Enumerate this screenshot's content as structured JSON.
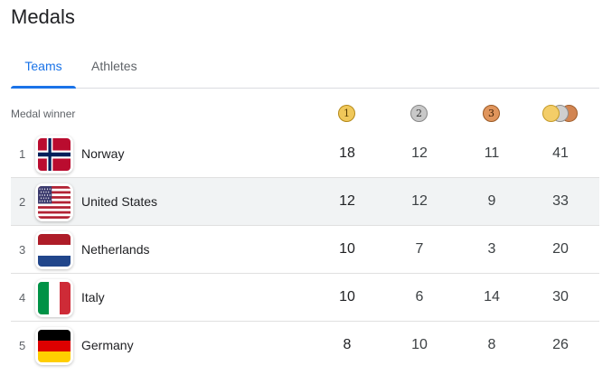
{
  "title": "Medals",
  "tabs": [
    {
      "label": "Teams",
      "active": true
    },
    {
      "label": "Athletes",
      "active": false
    }
  ],
  "header": {
    "label": "Medal winner",
    "gold": "1",
    "silver": "2",
    "bronze": "3"
  },
  "colors": {
    "accent": "#1a73e8",
    "gold": "#f0c85a",
    "silver": "#c8c8c8",
    "bronze": "#e0955c"
  },
  "rows": [
    {
      "rank": "1",
      "country": "Norway",
      "gold": "18",
      "silver": "12",
      "bronze": "11",
      "total": "41",
      "flag": "norway-flag"
    },
    {
      "rank": "2",
      "country": "United States",
      "gold": "12",
      "silver": "12",
      "bronze": "9",
      "total": "33",
      "flag": "usa-flag"
    },
    {
      "rank": "3",
      "country": "Netherlands",
      "gold": "10",
      "silver": "7",
      "bronze": "3",
      "total": "20",
      "flag": "netherlands-flag"
    },
    {
      "rank": "4",
      "country": "Italy",
      "gold": "10",
      "silver": "6",
      "bronze": "14",
      "total": "30",
      "flag": "italy-flag"
    },
    {
      "rank": "5",
      "country": "Germany",
      "gold": "8",
      "silver": "10",
      "bronze": "8",
      "total": "26",
      "flag": "germany-flag"
    }
  ]
}
